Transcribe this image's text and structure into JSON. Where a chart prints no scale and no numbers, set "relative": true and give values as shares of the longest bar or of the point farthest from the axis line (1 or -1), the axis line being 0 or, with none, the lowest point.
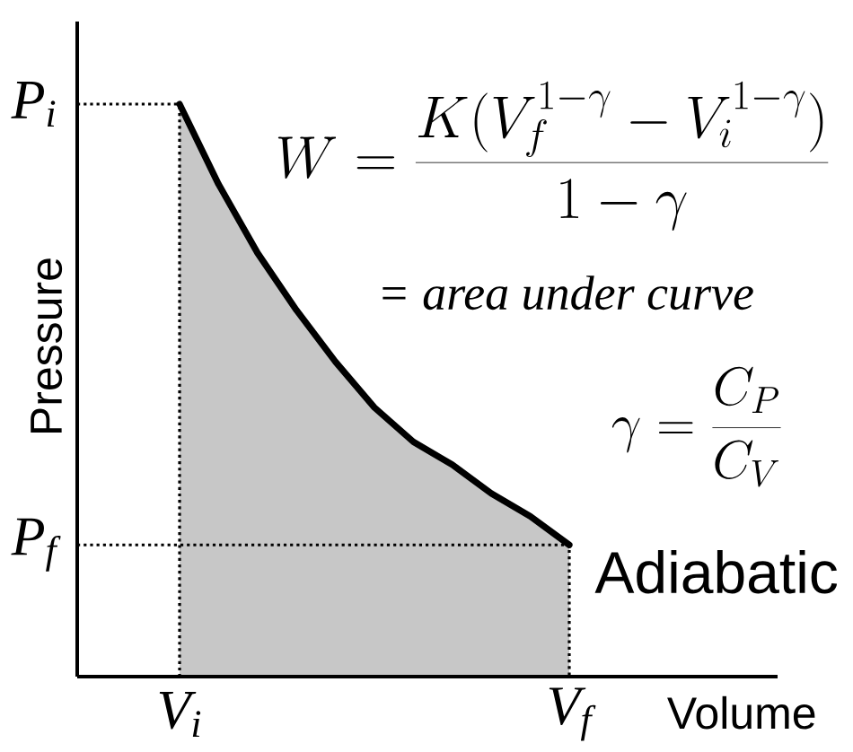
{
  "chart_data": {
    "type": "area",
    "relative": true,
    "xlabel": "Volume",
    "ylabel": "Pressure",
    "categories": [
      "V$_{i}$",
      null,
      null,
      null,
      null,
      null,
      null,
      null,
      null,
      null,
      "V$_{f}$"
    ],
    "series": [
      {
        "name": "Adiabatic",
        "color": "#000000",
        "values": [
          1,
          0.86,
          0.74,
          0.64,
          0.55,
          0.47,
          0.41,
          0.37,
          0.32,
          0.28,
          0.23
        ]
      }
    ],
    "ref_lines": [
      {
        "axis": "y",
        "value": 1,
        "label": "P$_{i}$",
        "line_style": "dotted"
      },
      {
        "axis": "y",
        "value": 0.23,
        "label": "P$_{f}$",
        "line_style": "dotted"
      }
    ],
    "annotations": [
      "W=\\frac{K(V_f^{1-\\gamma}-V_i^{1-\\gamma})}{1-\\gamma}",
      "= area under curve",
      "\\gamma=\\frac{C_P}{C_V}"
    ]
  }
}
